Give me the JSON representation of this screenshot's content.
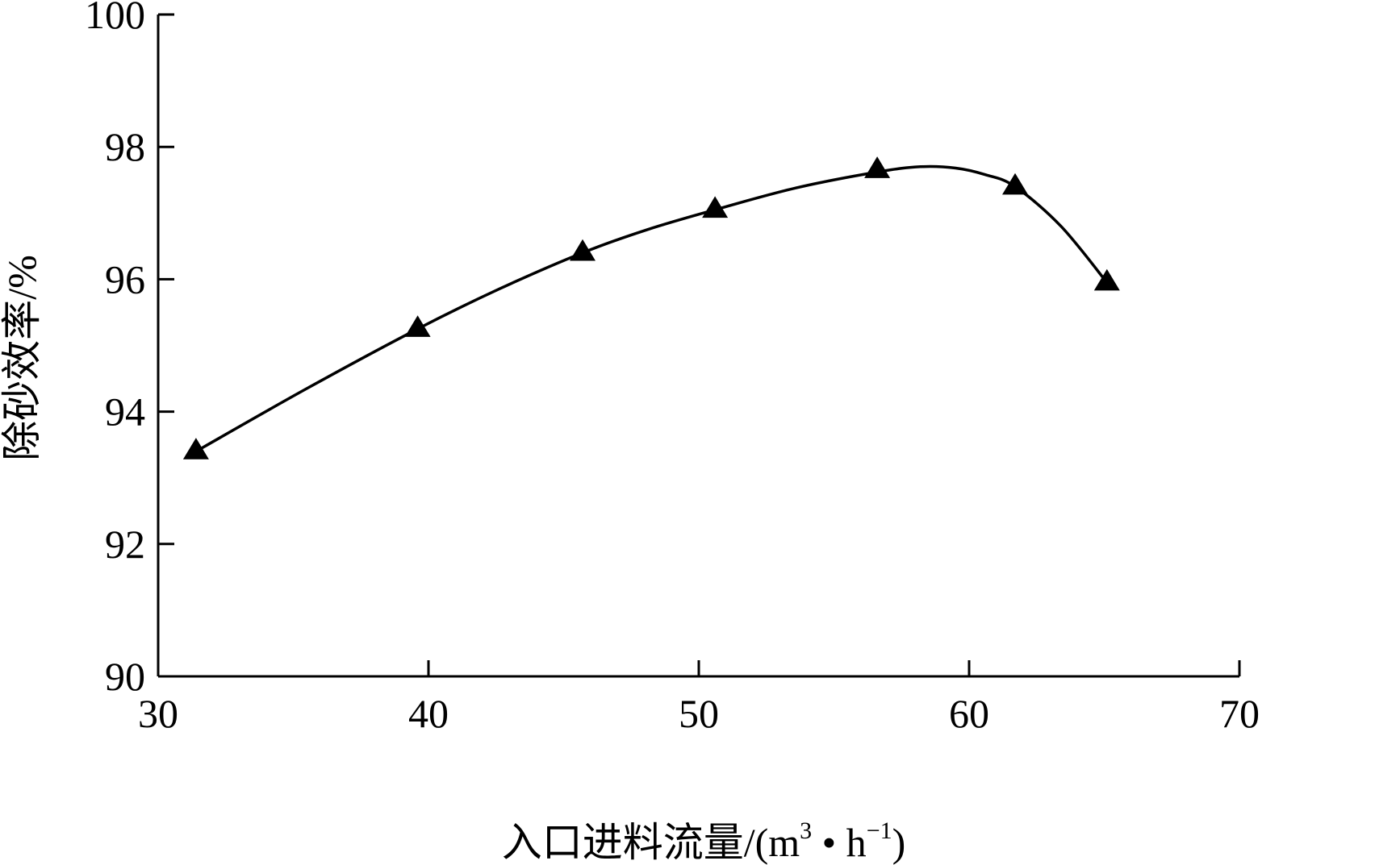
{
  "chart_data": {
    "type": "line",
    "xlabel": "入口进料流量/(m",
    "xlabel_sup1": "3",
    "xlabel_mid": " • h",
    "xlabel_sup2": "−1",
    "xlabel_end": ")",
    "ylabel": "除砂效率/%",
    "xlim": [
      30,
      70
    ],
    "ylim": [
      90,
      100
    ],
    "x_ticks": [
      30,
      40,
      50,
      60,
      70
    ],
    "y_ticks": [
      90,
      92,
      94,
      96,
      98,
      100
    ],
    "grid": false,
    "marker": "triangle",
    "series": [
      {
        "points": [
          {
            "x": 31.4,
            "y": 93.4
          },
          {
            "x": 39.6,
            "y": 95.25
          },
          {
            "x": 45.7,
            "y": 96.4
          },
          {
            "x": 50.6,
            "y": 97.05
          },
          {
            "x": 56.6,
            "y": 97.65
          },
          {
            "x": 61.7,
            "y": 97.4
          },
          {
            "x": 65.1,
            "y": 95.95
          }
        ],
        "curve": [
          {
            "x": 31.4,
            "y": 93.4
          },
          {
            "x": 35.5,
            "y": 94.35
          },
          {
            "x": 39.6,
            "y": 95.25
          },
          {
            "x": 42.6,
            "y": 95.85
          },
          {
            "x": 45.7,
            "y": 96.4
          },
          {
            "x": 48.1,
            "y": 96.75
          },
          {
            "x": 50.6,
            "y": 97.05
          },
          {
            "x": 53.6,
            "y": 97.38
          },
          {
            "x": 56.6,
            "y": 97.62
          },
          {
            "x": 58.2,
            "y": 97.7
          },
          {
            "x": 59.5,
            "y": 97.68
          },
          {
            "x": 60.6,
            "y": 97.58
          },
          {
            "x": 61.7,
            "y": 97.4
          },
          {
            "x": 63.4,
            "y": 96.8
          },
          {
            "x": 65.1,
            "y": 95.95
          }
        ]
      }
    ]
  }
}
